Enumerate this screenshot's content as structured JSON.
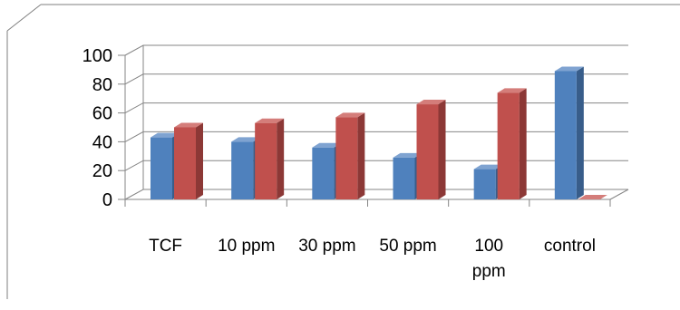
{
  "colors": {
    "series_front": "#4F81BD",
    "series_front_side": "#385D8A",
    "series_front_top": "#7FA3D1",
    "series_back": "#C0504D",
    "series_back_side": "#8C3836",
    "series_back_top": "#D47D7A",
    "gridline": "#868686",
    "axis": "#868686",
    "frame": "#7F7F7F"
  },
  "chart_data": {
    "type": "bar",
    "title": "",
    "xlabel": "",
    "ylabel": "",
    "three_d": true,
    "categories": [
      "TCF",
      "10 ppm",
      "30 ppm",
      "50 ppm",
      "100 ppm",
      "control"
    ],
    "category_lines": [
      [
        "TCF"
      ],
      [
        "10 ppm"
      ],
      [
        "30 ppm"
      ],
      [
        "50 ppm"
      ],
      [
        "100",
        "ppm"
      ],
      [
        "control"
      ]
    ],
    "series": [
      {
        "values": [
          43,
          40,
          36,
          29,
          21,
          89
        ],
        "color": "#4F81BD"
      },
      {
        "values": [
          50,
          53,
          57,
          66,
          74,
          0
        ],
        "color": "#C0504D"
      }
    ],
    "ylim": [
      0,
      100
    ],
    "yticks": [
      "0",
      "20",
      "40",
      "60",
      "80",
      "100"
    ],
    "grid": true,
    "legend": "none"
  }
}
